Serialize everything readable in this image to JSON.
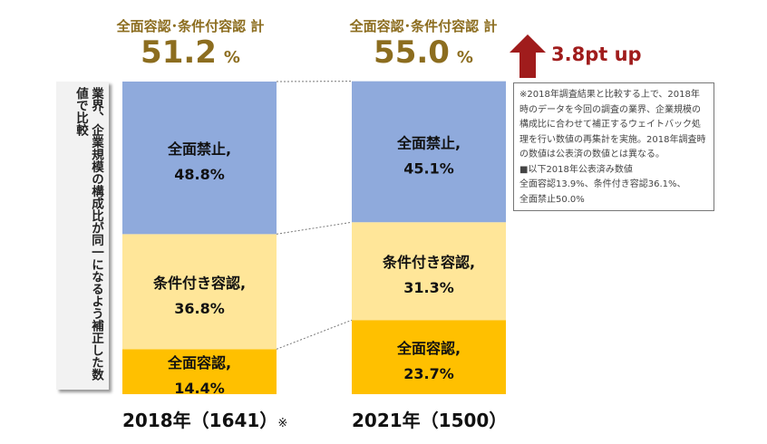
{
  "headers": [
    {
      "label": "全面容認･条件付容認 計",
      "value": "51.2",
      "unit": "%"
    },
    {
      "label": "全面容認･条件付容認 計",
      "value": "55.0",
      "unit": "%"
    }
  ],
  "change_label": "3.8pt up",
  "side_note": "業界、企業規模の構成比が同一になるよう補正した数値で比較",
  "footnote": [
    "※2018年調査結果と比較する上で、2018年時のデータを今回の調査の業界、企業規模の構成比に合わせて補正するウェイトバック処理を行い数値の再集計を実施。2018年調査時の数値は公表済の数値とは異なる。",
    "■以下2018年公表済み数値",
    "全面容認13.9%、条件付き容認36.1%、",
    "全面禁止50.0%"
  ],
  "colors": {
    "header": "#8c6d1f",
    "arrow": "#a01c1c"
  },
  "chart_data": {
    "type": "bar",
    "stacked": true,
    "ylim": [
      0,
      100
    ],
    "categories": [
      "2018年（1641）",
      "2021年（1500）"
    ],
    "category_marks": [
      "※",
      ""
    ],
    "series": [
      {
        "name": "全面容認",
        "values": [
          14.4,
          23.7
        ],
        "color": "#ffc000"
      },
      {
        "name": "条件付き容認",
        "values": [
          36.8,
          31.3
        ],
        "color": "#ffe699"
      },
      {
        "name": "全面禁止",
        "values": [
          48.8,
          45.1
        ],
        "color": "#8faadc"
      }
    ]
  }
}
